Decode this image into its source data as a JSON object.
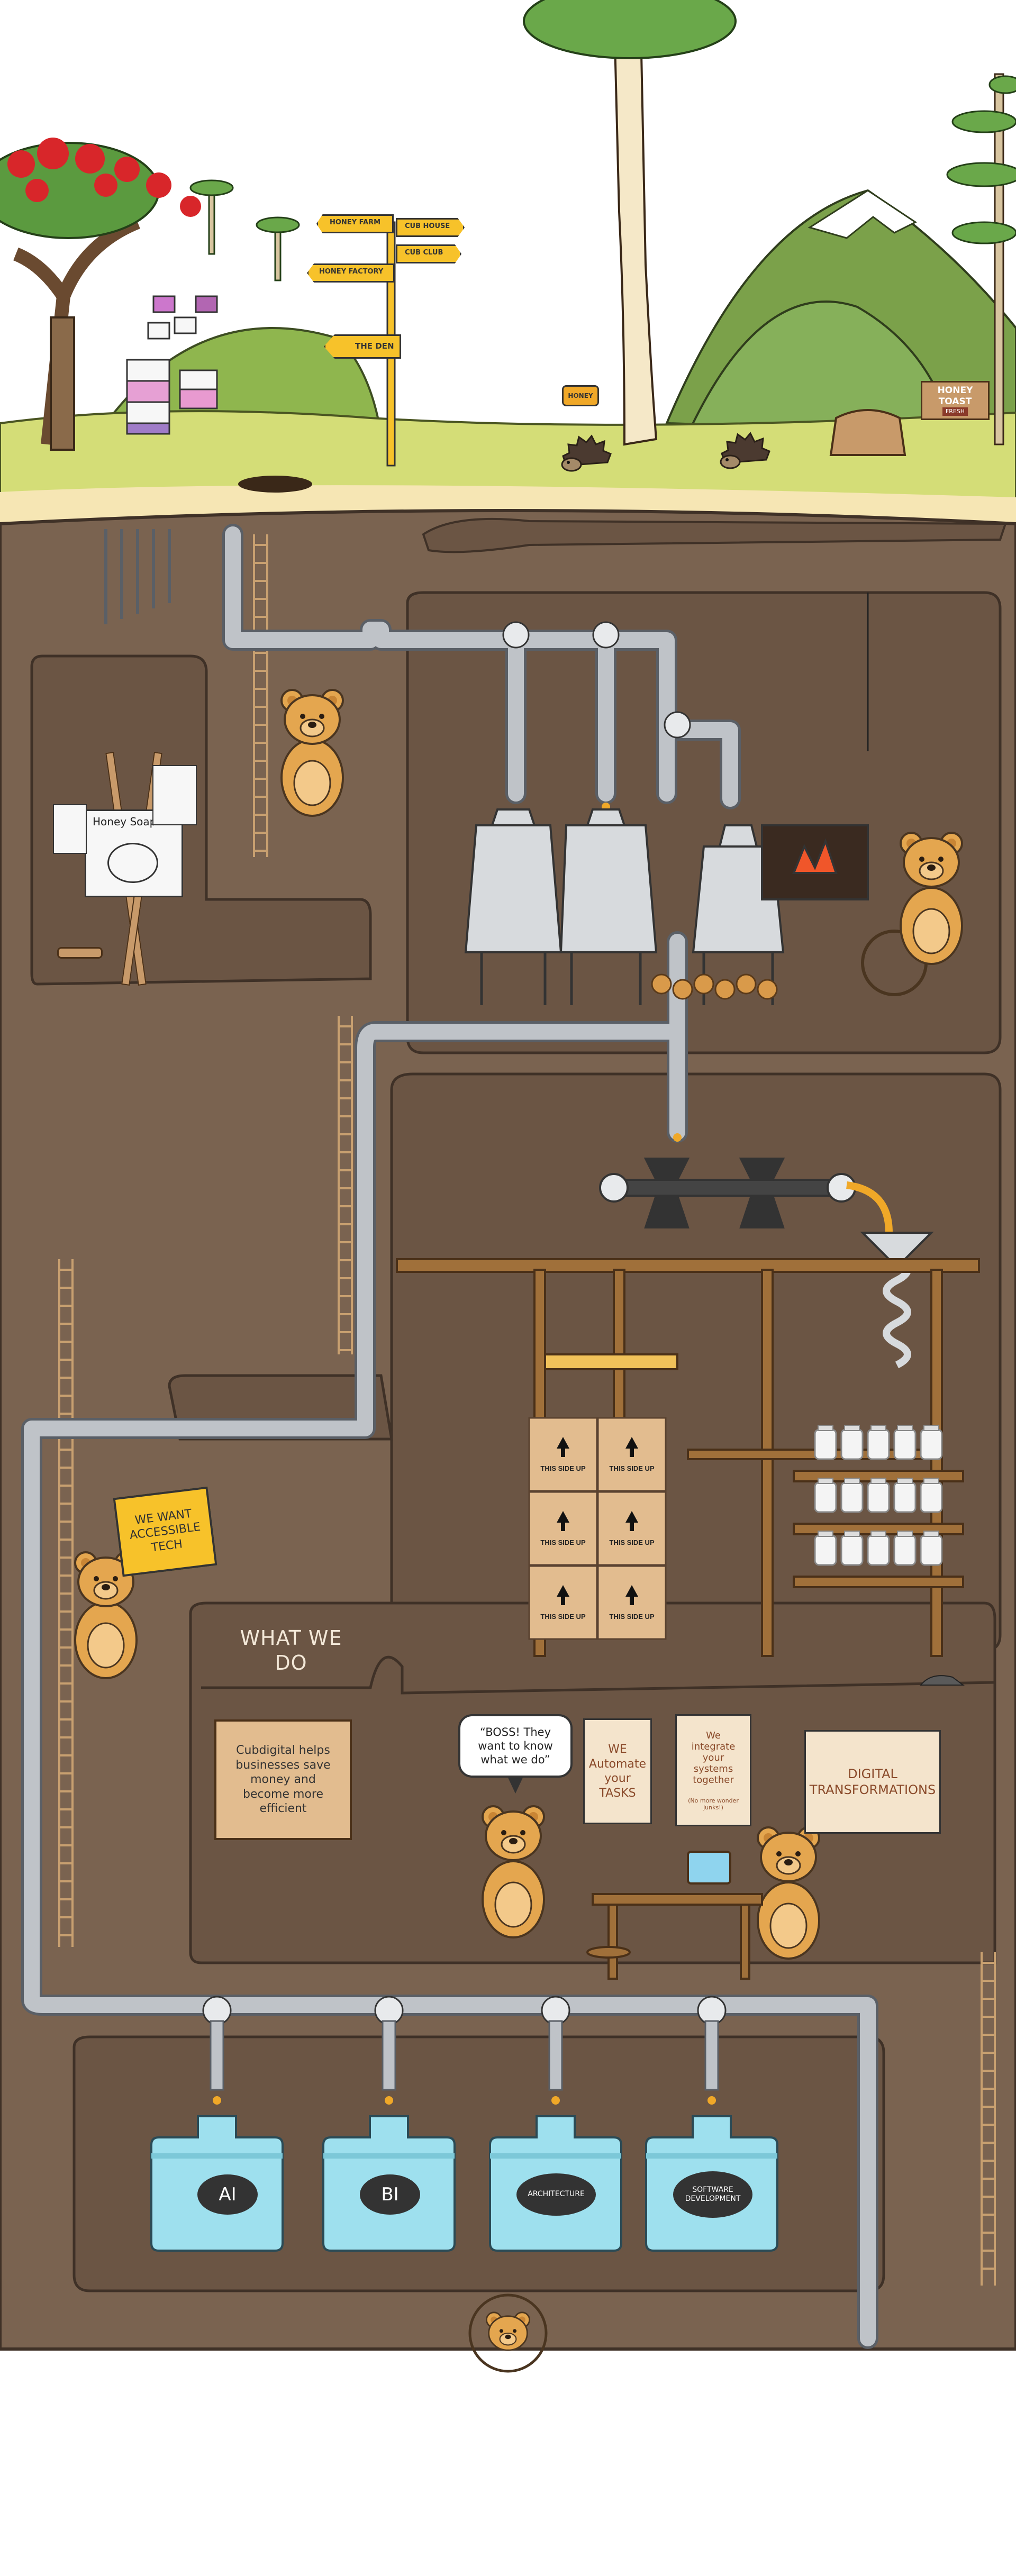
{
  "signpost": {
    "honey_farm": "HONEY FARM",
    "cub_house": "CUB HOUSE",
    "honey_factory": "HONEY FACTORY",
    "cub_club": "CUB CLUB",
    "the_den": "THE DEN"
  },
  "honey_pot_label": "HONEY",
  "honey_toast_sign": "HONEY TOAST",
  "honey_toast_sub": "FRESH",
  "easel_title": "Honey Soap",
  "boxes_label": "THIS SIDE UP",
  "protest_sign": "WE WANT ACCESSIBLE TECH",
  "what_we_do": "WHAT WE DO",
  "cubdigital_note": "Cubdigital helps businesses save money and become more efficient",
  "speech_bubble": "“BOSS! They want to know what we do”",
  "poster_automate": "WE Automate your TASKS",
  "poster_integrate": "We integrate your systems together",
  "poster_integrate_small": "(No more wonder junks!)",
  "poster_digital": "DIGITAL TRANSFORMATIONS",
  "tanks": [
    "AI",
    "BI",
    "ARCHITECTURE",
    "SOFTWARE DEVELOPMENT"
  ],
  "colors": {
    "sky": "#ffffff",
    "grass": "#d4dd77",
    "soil": "#7a6350",
    "tunnel": "#6b5544",
    "tunnel_outline": "#3f3127",
    "pipe": "#bfc3c8",
    "honey": "#f0a828",
    "bear": "#e4a64f",
    "tank": "#9ee0ee",
    "sign_yellow": "#f7c22a",
    "paper": "#f4e4cc"
  }
}
